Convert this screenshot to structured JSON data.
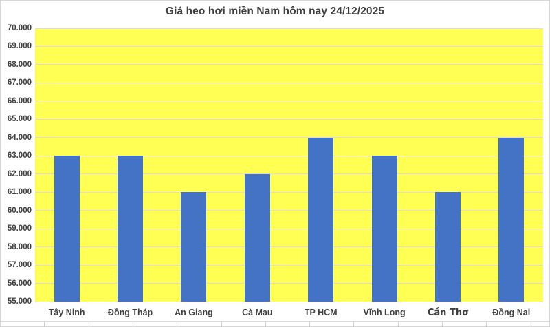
{
  "chart_data": {
    "type": "bar",
    "title": "Giá heo hơi miền Nam hôm nay 24/12/2025",
    "categories": [
      "Tây Ninh",
      "Đồng Tháp",
      "An Giang",
      "Cà Mau",
      "TP HCM",
      "Vĩnh Long",
      "Cần Thơ",
      "Đồng Nai"
    ],
    "values": [
      63000,
      63000,
      61000,
      62000,
      64000,
      63000,
      61000,
      64000
    ],
    "xlabel": "",
    "ylabel": "",
    "ylim": [
      55000,
      70000
    ],
    "ytick_step": 1000,
    "ytick_labels": [
      "55.000",
      "56.000",
      "57.000",
      "58.000",
      "59.000",
      "60.000",
      "61.000",
      "62.000",
      "63.000",
      "64.000",
      "65.000",
      "66.000",
      "67.000",
      "68.000",
      "69.000",
      "70.000"
    ],
    "grid": true,
    "legend": false,
    "data_labels": false,
    "colors": {
      "bar": "#4472C4",
      "plot_background": "#FFFF54",
      "gridline": "#DCDCDC",
      "text": "#404040",
      "title_text": "#3F3F3F",
      "frame_border": "#D6D6D6"
    }
  }
}
